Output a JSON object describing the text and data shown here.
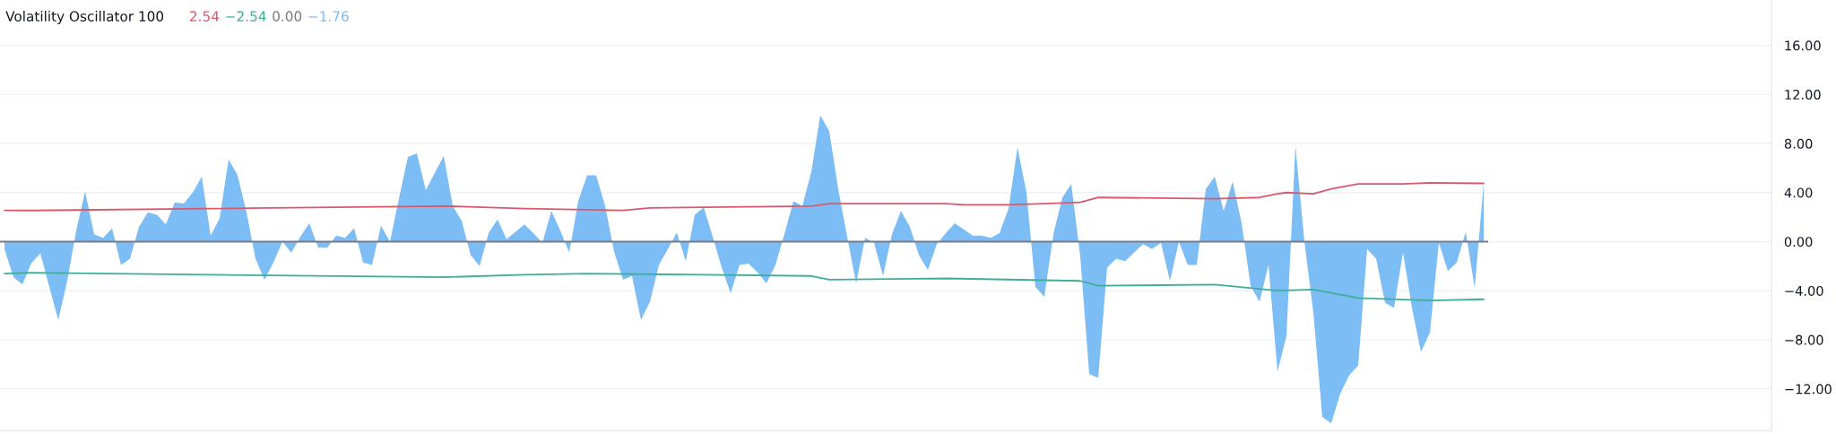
{
  "chart_data": {
    "type": "area",
    "title": "Volatility Oscillator 100",
    "annotations": [
      "2.54",
      "−2.54",
      "0.00",
      "−1.76"
    ],
    "categories": [
      null,
      null,
      null,
      null,
      null,
      null,
      null,
      null,
      null,
      null,
      null,
      null,
      null,
      null,
      null,
      null,
      null,
      null,
      null,
      null,
      null,
      null,
      null,
      null,
      null,
      null,
      null,
      null,
      null,
      null,
      null,
      null,
      null,
      null,
      null,
      null,
      null,
      null,
      null,
      null,
      null,
      null,
      null,
      null,
      null,
      null,
      null,
      null,
      null,
      null,
      null,
      null,
      null,
      null,
      null,
      null,
      null,
      null,
      null,
      null,
      null,
      null,
      null,
      null,
      null,
      null,
      null,
      null,
      null,
      null,
      null,
      null,
      null,
      null,
      null,
      null,
      null,
      null,
      null,
      null,
      null,
      null,
      null,
      null,
      null,
      null,
      null,
      null,
      null,
      null,
      null,
      null,
      null,
      null,
      null,
      null,
      null,
      null,
      null,
      null,
      null,
      null,
      null,
      null,
      null,
      null,
      null,
      null,
      null,
      null,
      null,
      null,
      null,
      null,
      null,
      null,
      null,
      null,
      null,
      null,
      null,
      null,
      null,
      null,
      null,
      null,
      null,
      null,
      null,
      null,
      null,
      null,
      null,
      null,
      null,
      null,
      null,
      null,
      null,
      null,
      null,
      null,
      null,
      null,
      null,
      null,
      null,
      null,
      null,
      null,
      null,
      null,
      null,
      null,
      null,
      null,
      null,
      null,
      null,
      null,
      null,
      null,
      null,
      null,
      null,
      null
    ],
    "series": [
      {
        "type": "line",
        "color": "#d9596b",
        "values": [
          2.55,
          null,
          null,
          2.54,
          null,
          null,
          null,
          null,
          null,
          null,
          null,
          null,
          null,
          null,
          null,
          null,
          null,
          null,
          null,
          null,
          null,
          null,
          null,
          null,
          null,
          null,
          null,
          null,
          null,
          null,
          null,
          null,
          null,
          null,
          null,
          null,
          null,
          null,
          null,
          null,
          null,
          null,
          null,
          null,
          null,
          null,
          null,
          null,
          null,
          2.9,
          null,
          null,
          null,
          null,
          null,
          null,
          null,
          null,
          2.7,
          null,
          null,
          null,
          null,
          null,
          null,
          2.6,
          null,
          null,
          null,
          2.55,
          null,
          null,
          2.75,
          null,
          null,
          null,
          null,
          null,
          null,
          null,
          null,
          null,
          null,
          null,
          null,
          null,
          null,
          null,
          null,
          null,
          2.9,
          null,
          3.1,
          null,
          null,
          null,
          null,
          null,
          null,
          null,
          null,
          null,
          null,
          null,
          null,
          3.1,
          null,
          3.0,
          null,
          null,
          null,
          null,
          3.0,
          null,
          null,
          null,
          3.1,
          null,
          null,
          null,
          3.2,
          null,
          3.6,
          null,
          null,
          null,
          null,
          null,
          null,
          null,
          null,
          null,
          null,
          null,
          null,
          3.5,
          null,
          null,
          null,
          null,
          3.6,
          null,
          3.9,
          4.0,
          null,
          null,
          3.9,
          null,
          4.3,
          null,
          null,
          4.7,
          null,
          null,
          null,
          null,
          4.7,
          null,
          null,
          4.8,
          null,
          null,
          null,
          null,
          null,
          4.75
        ]
      },
      {
        "type": "line",
        "color": "#3fae99",
        "values": [
          -2.6,
          null,
          null,
          -2.54,
          null,
          null,
          null,
          null,
          null,
          null,
          null,
          null,
          null,
          null,
          null,
          null,
          null,
          null,
          null,
          null,
          null,
          null,
          null,
          null,
          null,
          null,
          null,
          null,
          null,
          null,
          null,
          null,
          null,
          null,
          null,
          null,
          null,
          null,
          null,
          null,
          null,
          null,
          null,
          null,
          null,
          null,
          null,
          null,
          null,
          -2.9,
          null,
          null,
          null,
          null,
          null,
          null,
          null,
          null,
          -2.7,
          null,
          null,
          null,
          null,
          null,
          null,
          -2.6,
          null,
          null,
          null,
          null,
          null,
          null,
          null,
          null,
          null,
          null,
          null,
          null,
          null,
          null,
          null,
          null,
          null,
          null,
          null,
          null,
          null,
          null,
          null,
          null,
          -2.8,
          null,
          -3.1,
          null,
          null,
          null,
          null,
          null,
          null,
          null,
          null,
          null,
          null,
          null,
          null,
          -3.0,
          null,
          null,
          null,
          null,
          null,
          null,
          null,
          null,
          null,
          null,
          null,
          null,
          null,
          null,
          -3.2,
          null,
          -3.6,
          null,
          null,
          null,
          null,
          null,
          null,
          null,
          null,
          null,
          null,
          null,
          null,
          -3.5,
          null,
          null,
          null,
          null,
          null,
          null,
          -4.0,
          null,
          null,
          null,
          -3.9,
          null,
          null,
          null,
          null,
          -4.6,
          null,
          null,
          null,
          null,
          null,
          null,
          null,
          -4.8,
          null,
          null,
          null,
          null,
          null,
          -4.7
        ]
      },
      {
        "color": "#7dbdf5",
        "values": [
          -0.6,
          -2.9,
          -3.5,
          -1.76,
          -0.95,
          -3.7,
          -6.4,
          -3.2,
          0.9,
          4.1,
          0.6,
          0.3,
          1.1,
          -1.9,
          -1.4,
          1.2,
          2.4,
          2.2,
          1.4,
          3.2,
          3.1,
          4.0,
          5.3,
          0.5,
          1.9,
          6.7,
          5.4,
          2.4,
          -1.4,
          -3.1,
          -1.7,
          0,
          -0.9,
          0.4,
          1.5,
          -0.5,
          -0.5,
          0.5,
          0.3,
          1.1,
          -1.7,
          -1.9,
          1.3,
          0,
          3.5,
          6.9,
          7.2,
          4.2,
          5.6,
          7.0,
          2.9,
          1.7,
          -1.1,
          -2.0,
          0.7,
          1.8,
          0.2,
          0.8,
          1.4,
          0.7,
          -0.1,
          2.5,
          0.9,
          -0.9,
          3.3,
          5.4,
          5.4,
          2.9,
          -0.8,
          -3.1,
          -2.8,
          -6.4,
          -4.9,
          -1.9,
          -0.6,
          0.75,
          -1.6,
          2.2,
          2.8,
          0.4,
          -2.1,
          -4.2,
          -1.9,
          -1.8,
          -2.5,
          -3.4,
          -1.9,
          0.6,
          3.3,
          2.9,
          5.7,
          10.3,
          9.0,
          4.3,
          0.4,
          -3.4,
          0.3,
          -0.1,
          -2.8,
          0.6,
          2.5,
          1.2,
          -1.1,
          -2.3,
          -0.2,
          0.7,
          1.5,
          1.0,
          0.5,
          0.5,
          0.3,
          0.7,
          2.7,
          7.7,
          4.0,
          -3.7,
          -4.5,
          0.6,
          3.6,
          4.7,
          -1.2,
          -10.8,
          -11.1,
          -2.1,
          -1.4,
          -1.6,
          -0.9,
          -0.2,
          -0.6,
          -0.1,
          -3.2,
          0.0,
          -1.9,
          -1.9,
          4.3,
          5.3,
          2.5,
          4.9,
          1.5,
          -3.6,
          -4.9,
          -1.9,
          -10.6,
          -7.7,
          7.8,
          0,
          -5.8,
          -14.3,
          -14.8,
          -12.4,
          -10.9,
          -10.1,
          -0.6,
          -1.4,
          -5.0,
          -5.4,
          -0.9,
          -5.4,
          -9.0,
          -7.4,
          -0.1,
          -2.4,
          -1.7,
          0.8,
          -3.8,
          4.8
        ]
      }
    ],
    "ref_lines": [
      {
        "axis": "y",
        "value": 0,
        "color": "#787b86"
      }
    ],
    "ylim": [
      -15.4,
      19.7
    ],
    "yticks": [
      {
        "value": 16,
        "label": "16.00"
      },
      {
        "value": 12,
        "label": "12.00"
      },
      {
        "value": 8,
        "label": "8.00"
      },
      {
        "value": 4,
        "label": "4.00"
      },
      {
        "value": 0,
        "label": "0.00"
      },
      {
        "value": -4,
        "label": "−4.00"
      },
      {
        "value": -8,
        "label": "−8.00"
      },
      {
        "value": -12,
        "label": "−12.00"
      }
    ],
    "grid": "y",
    "tick_labels": "y",
    "legend": false
  }
}
